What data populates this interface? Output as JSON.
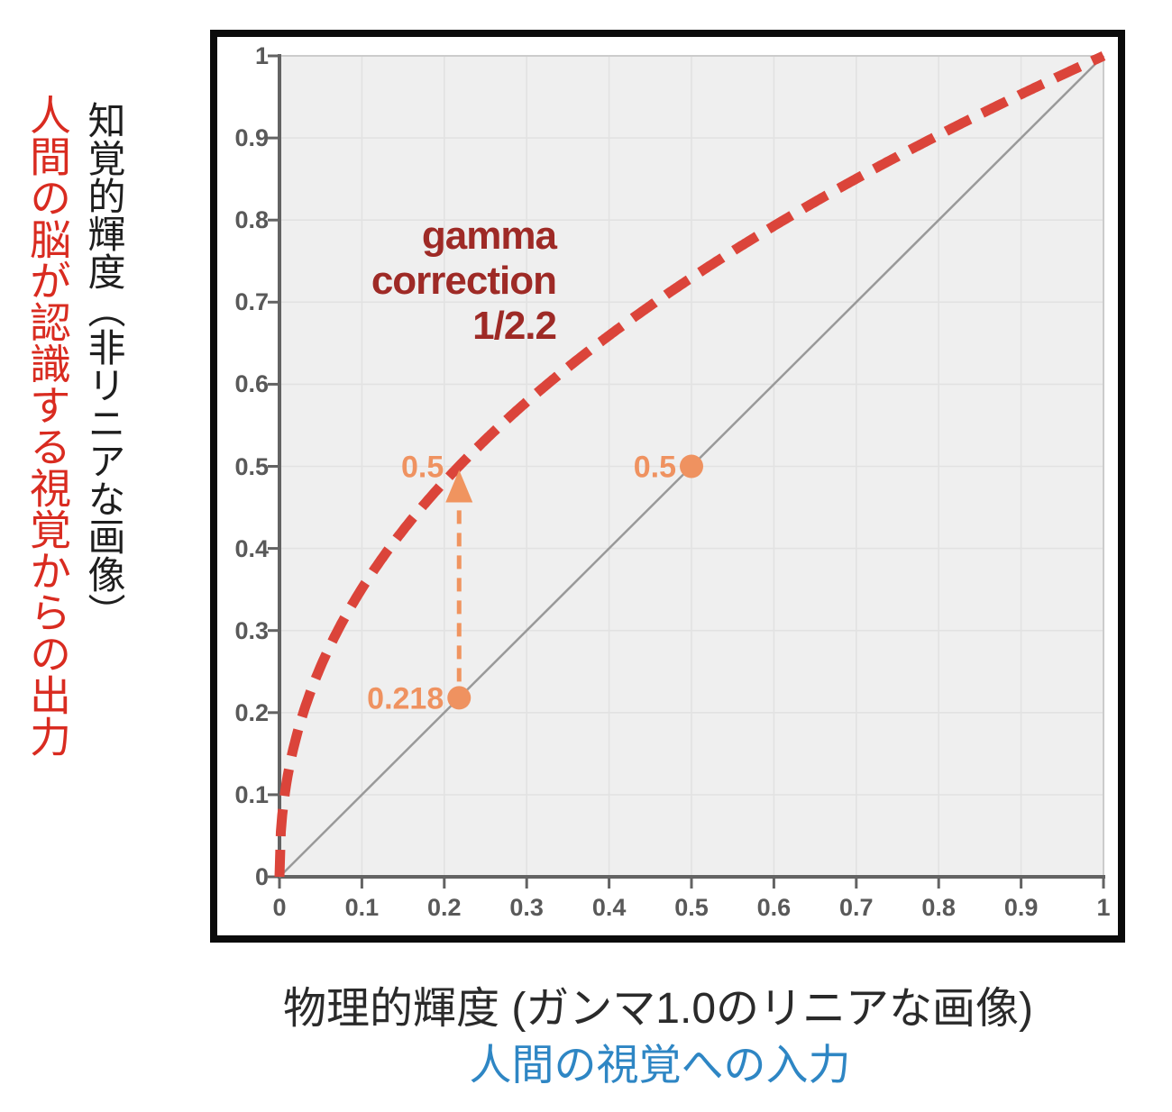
{
  "axes": {
    "y_label_black": "知覚的輝度（非リニアな画像）",
    "y_label_red": "人間の脳が認識する視覚からの出力",
    "x_label_black": "物理的輝度 (ガンマ1.0のリニアな画像)",
    "x_label_blue": "人間の視覚への入力"
  },
  "chart_data": {
    "type": "line",
    "title": "",
    "xlabel": "物理的輝度 (ガンマ1.0のリニアな画像) — 人間の視覚への入力",
    "ylabel": "知覚的輝度（非リニアな画像） — 人間の脳が認識する視覚からの出力",
    "xlim": [
      0,
      1
    ],
    "ylim": [
      0,
      1
    ],
    "grid": true,
    "x_tick_labels": [
      "0",
      "0.1",
      "0.2",
      "0.3",
      "0.4",
      "0.5",
      "0.6",
      "0.7",
      "0.8",
      "0.9",
      "1"
    ],
    "y_tick_labels": [
      "0",
      "0.1",
      "0.2",
      "0.3",
      "0.4",
      "0.5",
      "0.6",
      "0.7",
      "0.8",
      "0.9",
      "1"
    ],
    "annotation": {
      "line1": "gamma",
      "line2": "correction",
      "line3": "1/2.2"
    },
    "series": [
      {
        "name": "gamma correction 1/2.2",
        "formula": "y = x^(1/2.2)",
        "exponent": 0.4545,
        "style": "dashed",
        "color": "#db443a"
      },
      {
        "name": "linear identity (gamma 1.0)",
        "formula": "y = x",
        "exponent": 1,
        "style": "solid",
        "color": "#999999"
      }
    ],
    "points": [
      {
        "x": 0.218,
        "y": 0.218,
        "label": "0.218",
        "color": "#ef9260",
        "marker": true
      },
      {
        "x": 0.5,
        "y": 0.5,
        "label": "0.5",
        "color": "#ef9260",
        "marker": true
      },
      {
        "x": 0.218,
        "y": 0.5,
        "label": "0.5",
        "color": "#ef9260",
        "marker": false
      }
    ],
    "arrow": {
      "x": 0.218,
      "from_y": 0.218,
      "to_y": 0.5,
      "color": "#f0945f"
    }
  },
  "colors": {
    "curve_red": "#db443a",
    "diagonal_gray": "#999999",
    "axis_gray": "#636363",
    "tick_label_gray": "#595959",
    "plot_bg": "#efefef",
    "gridline": "#e2e2e2",
    "plot_edge": "#cccccc",
    "annotation_red": "#9e2a26",
    "point_orange": "#ef9260",
    "y_label_red": "#d92b20",
    "x_label_blue": "#2e86c4",
    "frame_black": "#0b0b0b"
  }
}
